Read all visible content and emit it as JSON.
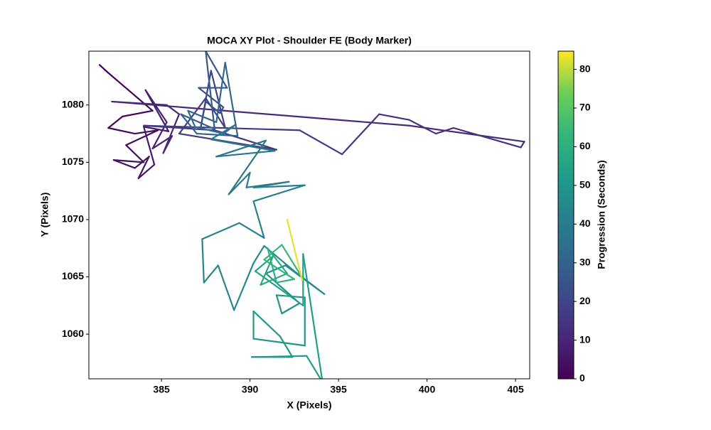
{
  "chart_data": {
    "type": "line",
    "title": "MOCA XY Plot - Shoulder FE (Body Marker)",
    "xlabel": "X (Pixels)",
    "ylabel": "Y (Pixels)",
    "xlim": [
      380.9,
      405.8
    ],
    "ylim": [
      1056.1,
      1084.7
    ],
    "xticks": [
      385,
      390,
      395,
      400,
      405
    ],
    "yticks": [
      1060,
      1065,
      1070,
      1075,
      1080
    ],
    "colormap": "viridis",
    "colorbar": {
      "label": "Progression (Seconds)",
      "lim": [
        0,
        84.7
      ],
      "ticks": [
        0,
        10,
        20,
        30,
        40,
        50,
        60,
        70,
        80
      ]
    },
    "x": [
      381.5,
      382,
      384.5,
      382.8,
      382,
      383.5,
      384.8,
      383,
      384,
      382.3,
      383.5,
      384.3,
      383.7,
      384.6,
      384,
      385.4,
      384.1,
      385.3,
      384.5,
      385.6,
      385.1,
      386,
      385.3,
      382.2,
      399,
      405.5,
      405.3,
      401.5,
      400.5,
      399,
      397.3,
      395.2,
      392.8,
      384,
      388,
      391.5,
      386,
      387.5,
      388.6,
      387.8,
      387.2,
      387.5,
      388.3,
      388.5,
      387.1,
      388.7,
      387.5,
      388,
      386.1,
      387,
      389.3,
      388.6,
      388.1,
      386.5,
      386.9,
      388.5,
      389.2,
      387.8,
      391.4,
      388.1,
      390.9,
      388.8,
      390,
      389.8,
      392.2,
      390.2,
      393.1,
      390.2,
      390.8,
      389.4,
      387.3,
      387.4,
      388.2,
      389.1,
      390.2,
      390.8,
      392.5,
      394.2,
      392,
      390.9,
      392.8,
      391.8,
      391.5,
      393.1,
      393.1,
      390.2,
      390.2,
      391.7,
      392.4,
      390.1,
      393.2,
      394.1,
      393,
      393,
      390.3,
      391.3,
      390.6,
      392.1,
      391,
      391.5,
      392.5,
      390.8,
      391.8,
      393,
      392.95,
      392.1
    ],
    "y": [
      1083.5,
      1082.8,
      1079.5,
      1079,
      1078,
      1077.5,
      1077.8,
      1076.5,
      1075,
      1075.2,
      1074.5,
      1075.5,
      1073.6,
      1074.8,
      1078.1,
      1077.7,
      1081.3,
      1078.5,
      1076.2,
      1077.3,
      1075.8,
      1079.2,
      1080,
      1080.3,
      1078.2,
      1076.8,
      1076.3,
      1078,
      1077.5,
      1078.7,
      1079.2,
      1075.7,
      1077.8,
      1078.2,
      1077.8,
      1076.1,
      1077.5,
      1080.6,
      1078,
      1083,
      1077.9,
      1080.3,
      1079.3,
      1079.8,
      1081.5,
      1081.5,
      1084.7,
      1077.9,
      1079.2,
      1077.5,
      1077.3,
      1083.7,
      1078.5,
      1079.5,
      1078.1,
      1077.5,
      1078.3,
      1077,
      1076,
      1075.5,
      1076.9,
      1072.2,
      1074.1,
      1072.8,
      1073.3,
      1072.8,
      1073,
      1071.6,
      1068.4,
      1069.7,
      1068.3,
      1064.5,
      1066,
      1062.1,
      1066.2,
      1067.7,
      1065.5,
      1063.5,
      1066,
      1065.3,
      1062.7,
      1061.8,
      1063.4,
      1063.2,
      1059,
      1059.6,
      1062,
      1059.8,
      1058,
      1058,
      1058.1,
      1055.8,
      1067,
      1062.5,
      1065.5,
      1066.8,
      1064.3,
      1065.3,
      1067.5,
      1064.5,
      1064.8,
      1066.5,
      1067.8,
      1064.8,
      1064.7,
      1070
    ],
    "progression": [
      0,
      0.5,
      1,
      1.5,
      2,
      2.5,
      3,
      3.5,
      4,
      4.5,
      5,
      5.5,
      6,
      6.5,
      7,
      7.5,
      8,
      8.5,
      9,
      9.5,
      10,
      10.5,
      11,
      11.5,
      12,
      12.5,
      13,
      13.5,
      14,
      14.5,
      15,
      15.5,
      16,
      16.5,
      17,
      17.5,
      18,
      18.5,
      19,
      20,
      21,
      22,
      23,
      24,
      25,
      26,
      27,
      28,
      29,
      30,
      31,
      32,
      33,
      34,
      35,
      35.5,
      36,
      36.5,
      37,
      37.5,
      38,
      38.5,
      39,
      39.5,
      40,
      40.5,
      41,
      41.5,
      42,
      42.5,
      43,
      43.5,
      44,
      44.5,
      45,
      45.5,
      46,
      46.5,
      47,
      47.5,
      48,
      48.5,
      49,
      49.5,
      50,
      50.5,
      51,
      51.5,
      52,
      52.5,
      53,
      53.5,
      54,
      55,
      56,
      57,
      58,
      59,
      60,
      61,
      62,
      63,
      64,
      65,
      83,
      84
    ]
  }
}
